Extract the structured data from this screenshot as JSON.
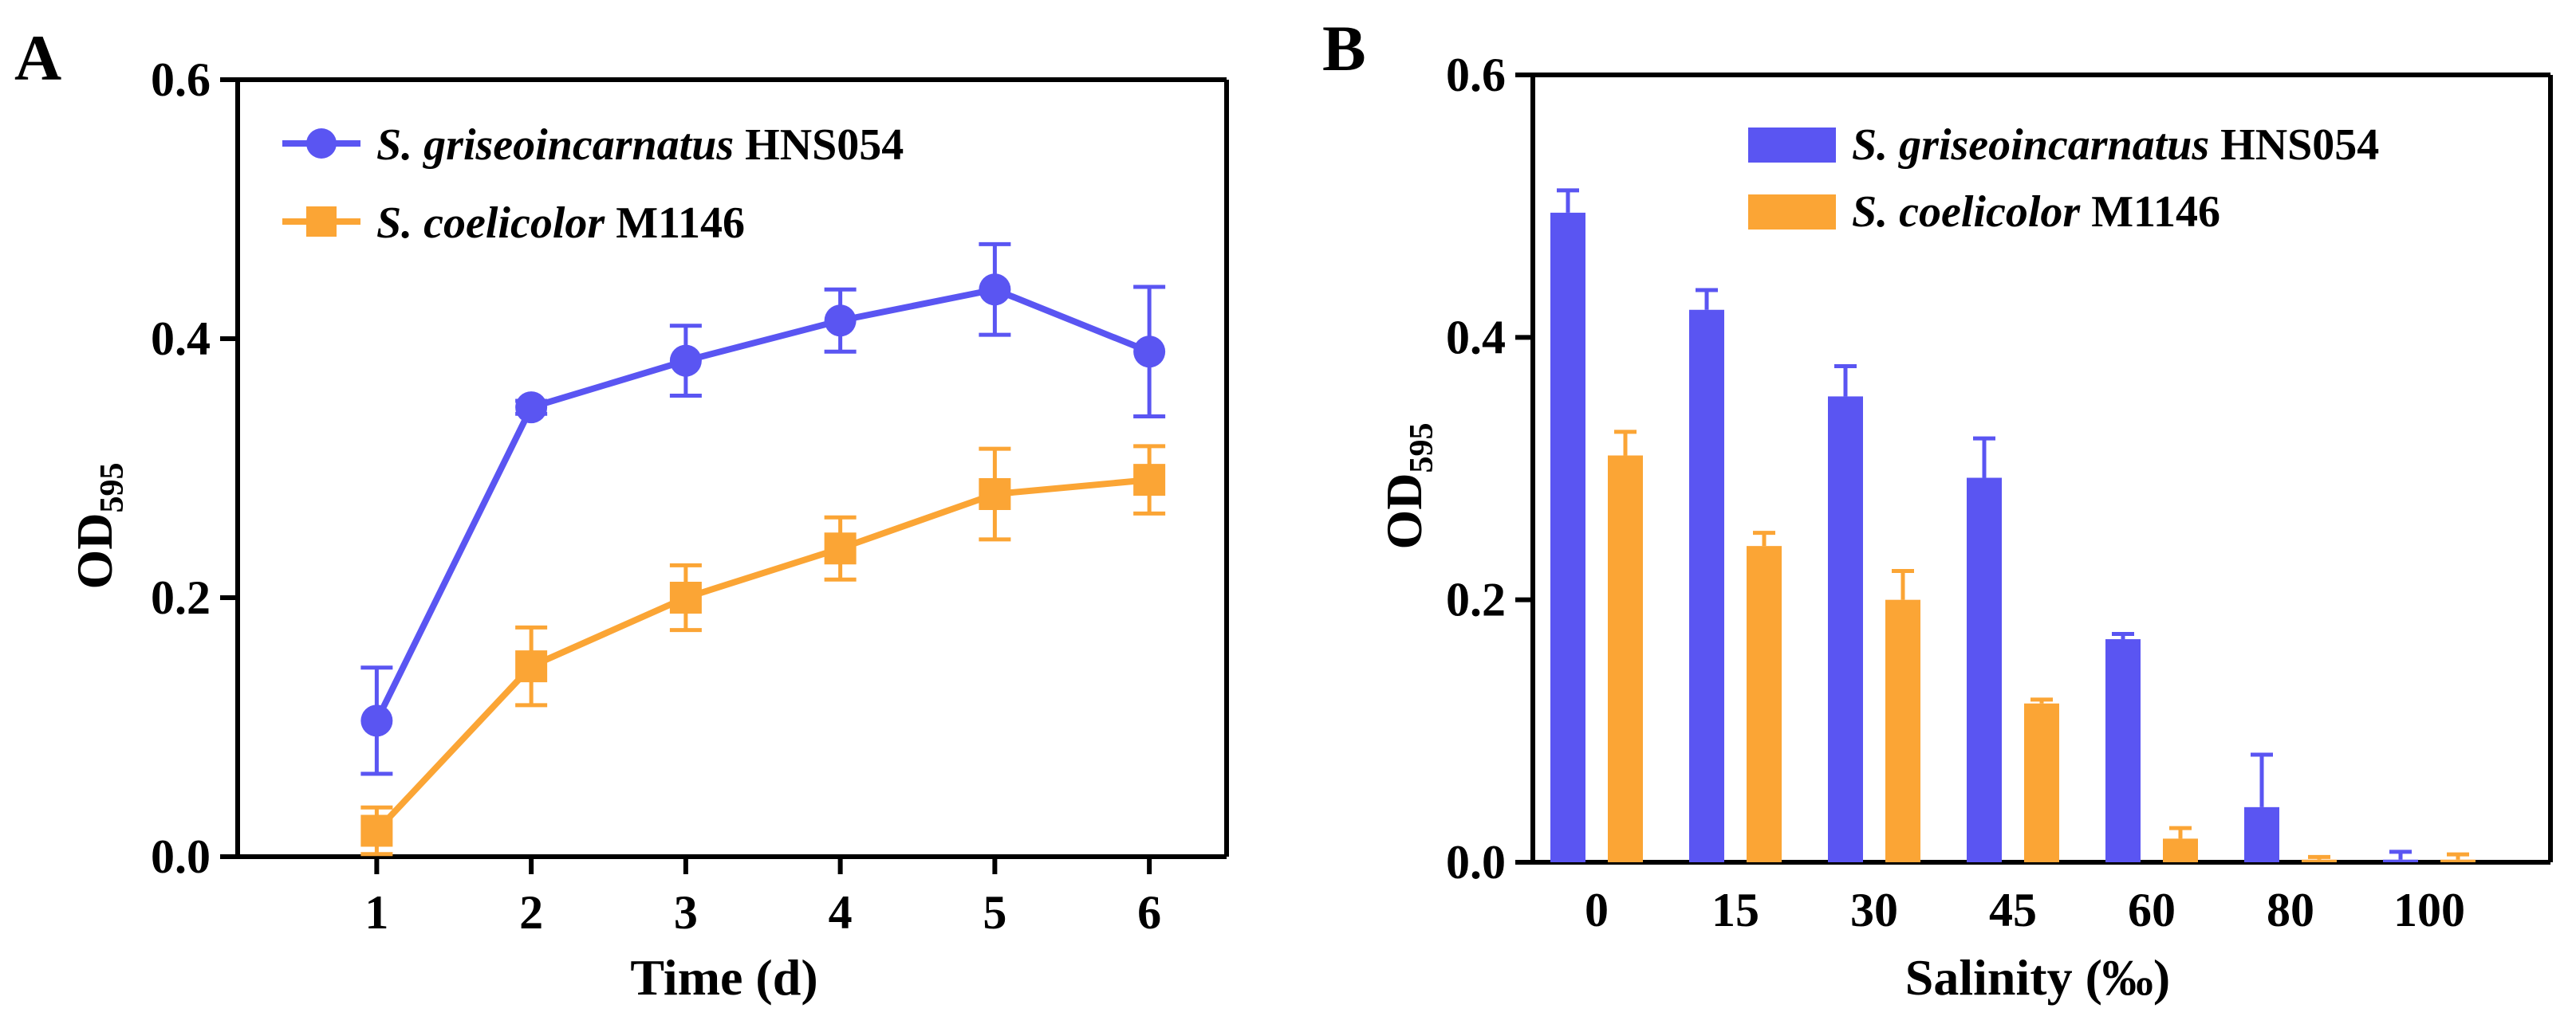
{
  "colors": {
    "series1": "#5a55f2",
    "series2": "#fba535",
    "axis": "#000000"
  },
  "chart_data": [
    {
      "panel_label": "A",
      "type": "line",
      "x": [
        1,
        2,
        3,
        4,
        5,
        6
      ],
      "xticks": [
        "1",
        "2",
        "3",
        "4",
        "5",
        "6"
      ],
      "xlim": [
        0.1,
        6.5
      ],
      "ylim": [
        0,
        0.6
      ],
      "yticks": [
        "0.0",
        "0.2",
        "0.4",
        "0.6"
      ],
      "ytick_values": [
        0,
        0.2,
        0.4,
        0.6
      ],
      "xlabel": "Time (d)",
      "ylabel": "OD",
      "ylabel_sub": "595",
      "legend_position": "top-left",
      "series": [
        {
          "name_italic": "S. griseoincarnatus",
          "name_rest": " HNS054",
          "color": "#5a55f2",
          "marker": "circle",
          "values": [
            0.105,
            0.347,
            0.383,
            0.414,
            0.438,
            0.39
          ],
          "errors": [
            0.041,
            0.005,
            0.027,
            0.024,
            0.035,
            0.05
          ]
        },
        {
          "name_italic": "S. coelicolor",
          "name_rest": " M1146",
          "color": "#fba535",
          "marker": "square",
          "values": [
            0.02,
            0.147,
            0.2,
            0.238,
            0.28,
            0.291
          ],
          "errors": [
            0.018,
            0.03,
            0.025,
            0.024,
            0.035,
            0.026
          ]
        }
      ]
    },
    {
      "panel_label": "B",
      "type": "bar",
      "categories": [
        "0",
        "15",
        "30",
        "45",
        "60",
        "80",
        "100"
      ],
      "ylim": [
        0,
        0.6
      ],
      "yticks": [
        "0.0",
        "0.2",
        "0.4",
        "0.6"
      ],
      "ytick_values": [
        0,
        0.2,
        0.4,
        0.6
      ],
      "xlabel": "Salinity (‰)",
      "ylabel": "OD",
      "ylabel_sub": "595",
      "legend_position": "top-right",
      "series": [
        {
          "name_italic": "S. griseoincarnatus",
          "name_rest": " HNS054",
          "color": "#5a55f2",
          "values": [
            0.495,
            0.421,
            0.355,
            0.293,
            0.17,
            0.042,
            0.002
          ],
          "errors": [
            0.017,
            0.015,
            0.023,
            0.03,
            0.004,
            0.04,
            0.006
          ]
        },
        {
          "name_italic": "S. coelicolor",
          "name_rest": " M1146",
          "color": "#fba535",
          "values": [
            0.31,
            0.241,
            0.2,
            0.121,
            0.018,
            0.002,
            0.002
          ],
          "errors": [
            0.018,
            0.01,
            0.022,
            0.003,
            0.008,
            0.002,
            0.004
          ]
        }
      ]
    }
  ]
}
